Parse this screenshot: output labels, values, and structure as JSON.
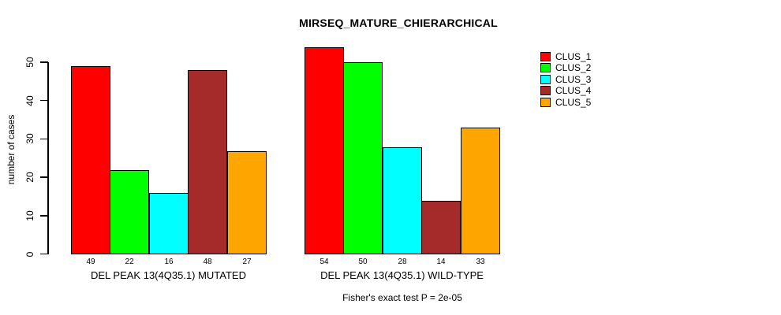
{
  "chart_data": {
    "type": "bar",
    "title": "MIRSEQ_MATURE_CHIERARCHICAL",
    "ylabel": "number of cases",
    "annotation": "Fisher's exact test P = 2e-05",
    "ylim": [
      0,
      50
    ],
    "yticks": [
      0,
      10,
      20,
      30,
      40,
      50
    ],
    "grid": false,
    "legend_position": "top-right",
    "categories": [
      "DEL PEAK 13(4Q35.1) MUTATED",
      "DEL PEAK 13(4Q35.1) WILD-TYPE"
    ],
    "series": [
      {
        "name": "CLUS_1",
        "color": "#FF0000",
        "values": [
          49,
          54
        ]
      },
      {
        "name": "CLUS_2",
        "color": "#00FF00",
        "values": [
          22,
          50
        ]
      },
      {
        "name": "CLUS_3",
        "color": "#00FFFF",
        "values": [
          16,
          28
        ]
      },
      {
        "name": "CLUS_4",
        "color": "#A52A2A",
        "values": [
          48,
          14
        ]
      },
      {
        "name": "CLUS_5",
        "color": "#FFA500",
        "values": [
          27,
          33
        ]
      }
    ],
    "bar_value_labels": true,
    "axis_color": "#000000",
    "background_color": "#FFFFFF"
  }
}
